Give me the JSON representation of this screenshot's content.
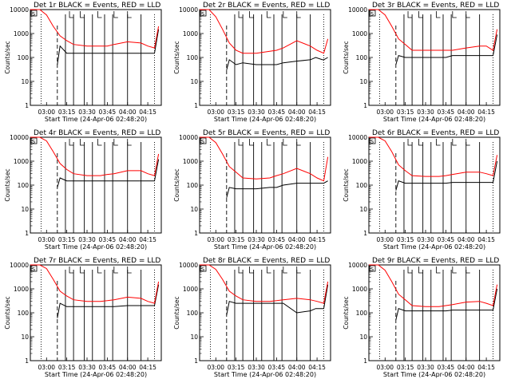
{
  "shared": {
    "xlabel": "Start Time (24-Apr-06 02:48:20)",
    "ylabel": "Counts/sec",
    "x_ticks": [
      "03:00",
      "03:15",
      "03:30",
      "03:45",
      "04:00",
      "04:15"
    ],
    "y_ticks": [
      "1",
      "10",
      "100",
      "1000",
      "10000"
    ],
    "corner_letter": "S"
  },
  "chart_data": [
    {
      "type": "line",
      "y_scale": "log",
      "ylim": [
        1,
        10000
      ],
      "xlim": [
        "02:48",
        "04:25"
      ],
      "title": "Det 1r BLACK = Events, RED = LLD",
      "series": [
        {
          "name": "BLACK = Events",
          "color": "#000000",
          "x": [
            "03:08",
            "03:10",
            "03:15",
            "03:20",
            "03:30",
            "03:40",
            "03:45",
            "03:50",
            "04:00",
            "04:10",
            "04:14",
            "04:19",
            "04:20",
            "04:23"
          ],
          "y": [
            50,
            300,
            150,
            150,
            150,
            150,
            150,
            150,
            150,
            150,
            150,
            150,
            150,
            1500
          ]
        },
        {
          "name": "RED = LLD",
          "color": "#ff0000",
          "x": [
            "02:48",
            "02:55",
            "03:00",
            "03:05",
            "03:10",
            "03:15",
            "03:20",
            "03:30",
            "03:40",
            "03:45",
            "03:50",
            "04:00",
            "04:10",
            "04:15",
            "04:20",
            "04:23"
          ],
          "y": [
            10000,
            10000,
            6000,
            2000,
            800,
            500,
            350,
            300,
            300,
            300,
            350,
            450,
            400,
            300,
            250,
            2000
          ]
        }
      ]
    },
    {
      "type": "line",
      "y_scale": "log",
      "ylim": [
        1,
        10000
      ],
      "xlim": [
        "02:48",
        "04:25"
      ],
      "title": "Det 2r BLACK = Events, RED = LLD",
      "series": [
        {
          "name": "BLACK = Events",
          "color": "#000000",
          "x": [
            "03:08",
            "03:10",
            "03:15",
            "03:20",
            "03:30",
            "03:40",
            "03:45",
            "03:50",
            "04:00",
            "04:10",
            "04:14",
            "04:19",
            "04:20",
            "04:23"
          ],
          "y": [
            30,
            80,
            50,
            60,
            50,
            50,
            50,
            60,
            70,
            80,
            100,
            80,
            80,
            100
          ]
        },
        {
          "name": "RED = LLD",
          "color": "#ff0000",
          "x": [
            "02:48",
            "02:55",
            "03:00",
            "03:05",
            "03:10",
            "03:15",
            "03:20",
            "03:30",
            "03:40",
            "03:45",
            "03:50",
            "04:00",
            "04:10",
            "04:15",
            "04:20",
            "04:23"
          ],
          "y": [
            10000,
            10000,
            5000,
            1500,
            400,
            200,
            150,
            150,
            180,
            200,
            250,
            500,
            300,
            200,
            150,
            600
          ]
        }
      ]
    },
    {
      "type": "line",
      "y_scale": "log",
      "ylim": [
        1,
        10000
      ],
      "xlim": [
        "02:48",
        "04:25"
      ],
      "title": "Det 3r BLACK = Events, RED = LLD",
      "series": [
        {
          "name": "BLACK = Events",
          "color": "#000000",
          "x": [
            "03:08",
            "03:10",
            "03:15",
            "03:20",
            "03:30",
            "03:40",
            "03:45",
            "03:50",
            "04:00",
            "04:10",
            "04:14",
            "04:19",
            "04:20",
            "04:23"
          ],
          "y": [
            50,
            120,
            100,
            100,
            100,
            100,
            100,
            120,
            120,
            120,
            120,
            120,
            120,
            900
          ]
        },
        {
          "name": "RED = LLD",
          "color": "#ff0000",
          "x": [
            "02:48",
            "02:55",
            "03:00",
            "03:05",
            "03:10",
            "03:15",
            "03:20",
            "03:30",
            "03:40",
            "03:45",
            "03:50",
            "04:00",
            "04:10",
            "04:15",
            "04:20",
            "04:23"
          ],
          "y": [
            10000,
            10000,
            6000,
            2000,
            600,
            350,
            200,
            200,
            200,
            200,
            200,
            250,
            300,
            300,
            200,
            1500
          ]
        }
      ]
    },
    {
      "type": "line",
      "y_scale": "log",
      "ylim": [
        1,
        10000
      ],
      "xlim": [
        "02:48",
        "04:25"
      ],
      "title": "Det 4r BLACK = Events, RED = LLD",
      "series": [
        {
          "name": "BLACK = Events",
          "color": "#000000",
          "x": [
            "03:08",
            "03:10",
            "03:15",
            "03:20",
            "03:30",
            "03:40",
            "03:45",
            "03:50",
            "04:00",
            "04:10",
            "04:14",
            "04:19",
            "04:20",
            "04:23"
          ],
          "y": [
            80,
            200,
            150,
            150,
            150,
            150,
            150,
            150,
            150,
            150,
            150,
            150,
            150,
            1200
          ]
        },
        {
          "name": "RED = LLD",
          "color": "#ff0000",
          "x": [
            "02:48",
            "02:55",
            "03:00",
            "03:05",
            "03:10",
            "03:15",
            "03:20",
            "03:30",
            "03:40",
            "03:45",
            "03:50",
            "04:00",
            "04:10",
            "04:15",
            "04:20",
            "04:23"
          ],
          "y": [
            10000,
            10000,
            7000,
            2500,
            800,
            450,
            300,
            250,
            250,
            280,
            300,
            400,
            400,
            300,
            250,
            2000
          ]
        }
      ]
    },
    {
      "type": "line",
      "y_scale": "log",
      "ylim": [
        1,
        10000
      ],
      "xlim": [
        "02:48",
        "04:25"
      ],
      "title": "Det 5r BLACK = Events, RED = LLD",
      "series": [
        {
          "name": "BLACK = Events",
          "color": "#000000",
          "x": [
            "03:08",
            "03:10",
            "03:15",
            "03:20",
            "03:30",
            "03:40",
            "03:45",
            "03:50",
            "04:00",
            "04:10",
            "04:14",
            "04:19",
            "04:20",
            "04:23"
          ],
          "y": [
            30,
            80,
            70,
            70,
            70,
            80,
            80,
            100,
            120,
            120,
            120,
            120,
            120,
            150
          ]
        },
        {
          "name": "RED = LLD",
          "color": "#ff0000",
          "x": [
            "02:48",
            "02:55",
            "03:00",
            "03:05",
            "03:10",
            "03:15",
            "03:20",
            "03:30",
            "03:40",
            "03:45",
            "03:50",
            "04:00",
            "04:10",
            "04:15",
            "04:20",
            "04:23"
          ],
          "y": [
            10000,
            10000,
            6000,
            2000,
            600,
            350,
            200,
            180,
            200,
            250,
            300,
            500,
            300,
            200,
            150,
            1500
          ]
        }
      ]
    },
    {
      "type": "line",
      "y_scale": "log",
      "ylim": [
        1,
        10000
      ],
      "xlim": [
        "02:48",
        "04:25"
      ],
      "title": "Det 6r BLACK = Events, RED = LLD",
      "series": [
        {
          "name": "BLACK = Events",
          "color": "#000000",
          "x": [
            "03:08",
            "03:10",
            "03:15",
            "03:20",
            "03:30",
            "03:40",
            "03:45",
            "03:50",
            "04:00",
            "04:10",
            "04:14",
            "04:19",
            "04:20",
            "04:23"
          ],
          "y": [
            60,
            150,
            120,
            120,
            120,
            120,
            120,
            130,
            130,
            130,
            130,
            130,
            130,
            1000
          ]
        },
        {
          "name": "RED = LLD",
          "color": "#ff0000",
          "x": [
            "02:48",
            "02:55",
            "03:00",
            "03:05",
            "03:10",
            "03:15",
            "03:20",
            "03:30",
            "03:40",
            "03:45",
            "03:50",
            "04:00",
            "04:10",
            "04:15",
            "04:20",
            "04:23"
          ],
          "y": [
            10000,
            10000,
            7000,
            2500,
            700,
            400,
            250,
            230,
            230,
            250,
            280,
            350,
            350,
            300,
            250,
            1800
          ]
        }
      ]
    },
    {
      "type": "line",
      "y_scale": "log",
      "ylim": [
        1,
        10000
      ],
      "xlim": [
        "02:48",
        "04:25"
      ],
      "title": "Det 7r BLACK = Events, RED = LLD",
      "series": [
        {
          "name": "BLACK = Events",
          "color": "#000000",
          "x": [
            "03:08",
            "03:10",
            "03:15",
            "03:20",
            "03:30",
            "03:40",
            "03:45",
            "03:50",
            "04:00",
            "04:10",
            "04:14",
            "04:19",
            "04:20",
            "04:23"
          ],
          "y": [
            60,
            250,
            180,
            180,
            180,
            180,
            180,
            180,
            200,
            200,
            200,
            200,
            200,
            1500
          ]
        },
        {
          "name": "RED = LLD",
          "color": "#ff0000",
          "x": [
            "02:48",
            "02:55",
            "03:00",
            "03:05",
            "03:10",
            "03:15",
            "03:20",
            "03:30",
            "03:40",
            "03:45",
            "03:50",
            "04:00",
            "04:10",
            "04:15",
            "04:20",
            "04:23"
          ],
          "y": [
            10000,
            10000,
            7000,
            2500,
            800,
            500,
            350,
            300,
            300,
            320,
            350,
            450,
            400,
            300,
            250,
            2000
          ]
        }
      ]
    },
    {
      "type": "line",
      "y_scale": "log",
      "ylim": [
        1,
        10000
      ],
      "xlim": [
        "02:48",
        "04:25"
      ],
      "title": "Det 8r BLACK = Events, RED = LLD",
      "series": [
        {
          "name": "BLACK = Events",
          "color": "#000000",
          "x": [
            "03:08",
            "03:10",
            "03:15",
            "03:20",
            "03:30",
            "03:40",
            "03:45",
            "03:50",
            "04:00",
            "04:10",
            "04:14",
            "04:19",
            "04:20",
            "04:23"
          ],
          "y": [
            80,
            300,
            250,
            250,
            250,
            250,
            250,
            250,
            100,
            120,
            150,
            150,
            150,
            1500
          ]
        },
        {
          "name": "RED = LLD",
          "color": "#ff0000",
          "x": [
            "02:48",
            "02:55",
            "03:00",
            "03:05",
            "03:10",
            "03:15",
            "03:20",
            "03:30",
            "03:40",
            "03:45",
            "03:50",
            "04:00",
            "04:10",
            "04:15",
            "04:20",
            "04:23"
          ],
          "y": [
            10000,
            10000,
            6500,
            2500,
            800,
            500,
            350,
            300,
            300,
            320,
            350,
            400,
            350,
            300,
            250,
            2000
          ]
        }
      ]
    },
    {
      "type": "line",
      "y_scale": "log",
      "ylim": [
        1,
        10000
      ],
      "xlim": [
        "02:48",
        "04:25"
      ],
      "title": "Det 9r BLACK = Events, RED = LLD",
      "series": [
        {
          "name": "BLACK = Events",
          "color": "#000000",
          "x": [
            "03:08",
            "03:10",
            "03:15",
            "03:20",
            "03:30",
            "03:40",
            "03:45",
            "03:50",
            "04:00",
            "04:10",
            "04:14",
            "04:19",
            "04:20",
            "04:23"
          ],
          "y": [
            50,
            150,
            120,
            120,
            120,
            120,
            120,
            130,
            130,
            130,
            130,
            130,
            130,
            1000
          ]
        },
        {
          "name": "RED = LLD",
          "color": "#ff0000",
          "x": [
            "02:48",
            "02:55",
            "03:00",
            "03:05",
            "03:10",
            "03:15",
            "03:20",
            "03:30",
            "03:40",
            "03:45",
            "03:50",
            "04:00",
            "04:10",
            "04:15",
            "04:20",
            "04:23"
          ],
          "y": [
            10000,
            10000,
            6000,
            2000,
            600,
            350,
            200,
            180,
            180,
            200,
            220,
            280,
            300,
            250,
            200,
            1500
          ]
        }
      ]
    }
  ]
}
